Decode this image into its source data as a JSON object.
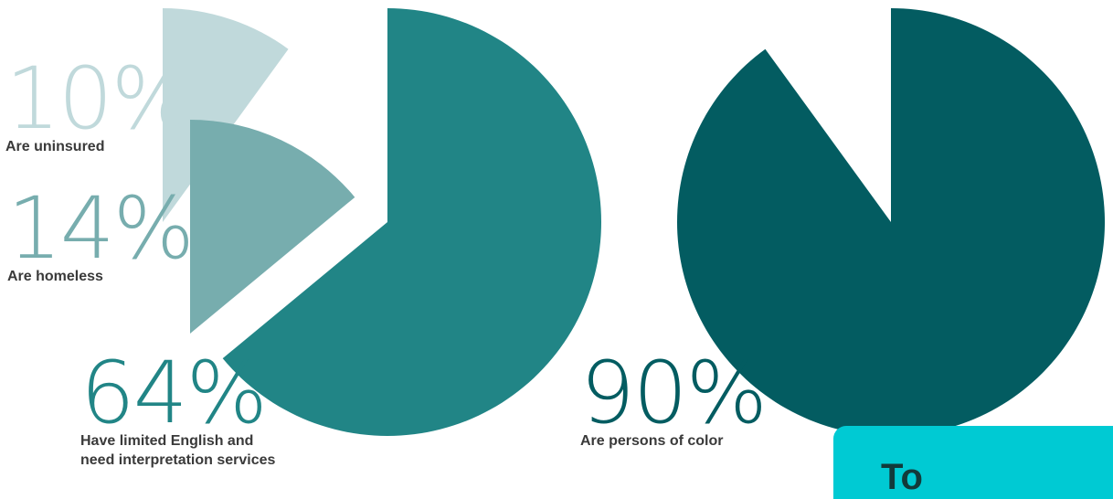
{
  "colors": {
    "uninsured": "#c0d9db",
    "homeless": "#77adae",
    "limited_english": "#218586",
    "persons_of_color": "#035c61",
    "callout_box": "#00cad3",
    "label_text": "#3a3a3a"
  },
  "chart_data": [
    {
      "type": "pie",
      "values": [
        10
      ],
      "percent_label": "10%",
      "label": "Are uninsured"
    },
    {
      "type": "pie",
      "values": [
        14
      ],
      "percent_label": "14%",
      "label": "Are homeless"
    },
    {
      "type": "pie",
      "values": [
        64
      ],
      "percent_label": "64%",
      "label_line1": "Have limited English and",
      "label_line2": "need interpretation services"
    },
    {
      "type": "pie",
      "values": [
        90
      ],
      "percent_label": "90%",
      "label": "Are persons of color"
    }
  ],
  "callout": {
    "text": "To"
  }
}
